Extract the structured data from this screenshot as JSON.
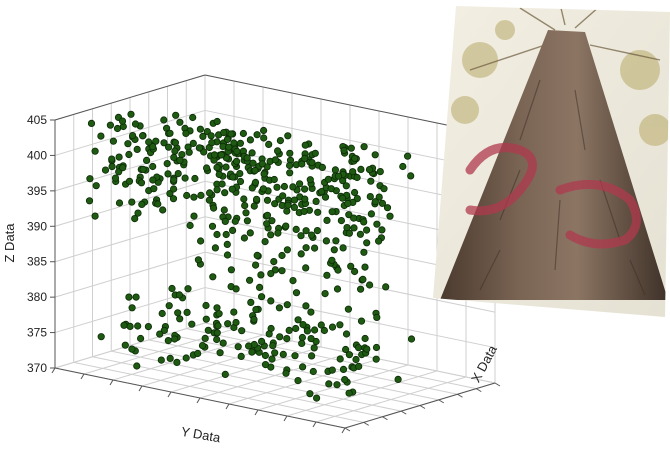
{
  "chart_data": {
    "type": "scatter",
    "projection": "3d",
    "xlabel": "X Data",
    "ylabel": "Y Data",
    "zlabel": "Z Data",
    "zlim": [
      370,
      405
    ],
    "zticks": [
      "405",
      "400",
      "395",
      "390",
      "385",
      "380",
      "375",
      "370"
    ],
    "xlim": [
      0,
      1
    ],
    "ylim": [
      0,
      1
    ],
    "grid": true,
    "marker_color": "#1f5a12",
    "marker_edge": "#0b2a06",
    "clusters": [
      {
        "z_range": [
          398,
          404.5
        ],
        "count": 260,
        "x_range": [
          0.05,
          0.6
        ],
        "y_range": [
          0.05,
          0.95
        ]
      },
      {
        "z_range": [
          392,
          398
        ],
        "count": 120,
        "x_range": [
          0.05,
          0.6
        ],
        "y_range": [
          0.05,
          0.95
        ]
      },
      {
        "z_range": [
          386,
          392
        ],
        "count": 45,
        "x_range": [
          0.2,
          0.6
        ],
        "y_range": [
          0.35,
          0.9
        ]
      },
      {
        "z_range": [
          380,
          386
        ],
        "count": 25,
        "x_range": [
          0.2,
          0.6
        ],
        "y_range": [
          0.3,
          0.9
        ]
      },
      {
        "z_range": [
          372,
          380
        ],
        "count": 140,
        "x_range": [
          0.05,
          0.6
        ],
        "y_range": [
          0.1,
          0.95
        ]
      }
    ]
  },
  "photo": {
    "subject": "tree trunk viewed from below with red paint marking"
  }
}
